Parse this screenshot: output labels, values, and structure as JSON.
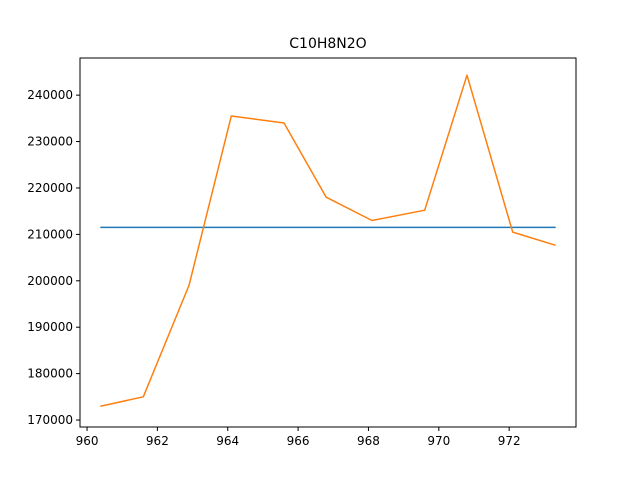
{
  "chart_data": {
    "type": "line",
    "title": "C10H8N2O",
    "xlabel": "",
    "ylabel": "",
    "xlim": [
      959.8,
      973.9
    ],
    "ylim": [
      168500,
      248000
    ],
    "grid": false,
    "x_ticks": [
      960,
      962,
      964,
      966,
      968,
      970,
      972
    ],
    "y_ticks": [
      170000,
      180000,
      190000,
      200000,
      210000,
      220000,
      230000,
      240000
    ],
    "series": [
      {
        "color": "#1f77b4",
        "x": [
          960.4,
          973.3
        ],
        "y": [
          211500,
          211500
        ]
      },
      {
        "color": "#ff7f0e",
        "x": [
          960.4,
          961.6,
          962.9,
          964.1,
          965.6,
          966.8,
          968.1,
          969.6,
          970.8,
          972.1,
          973.3
        ],
        "y": [
          173000,
          175000,
          199000,
          235500,
          234000,
          218000,
          213000,
          215200,
          244300,
          210500,
          207700
        ]
      }
    ]
  }
}
